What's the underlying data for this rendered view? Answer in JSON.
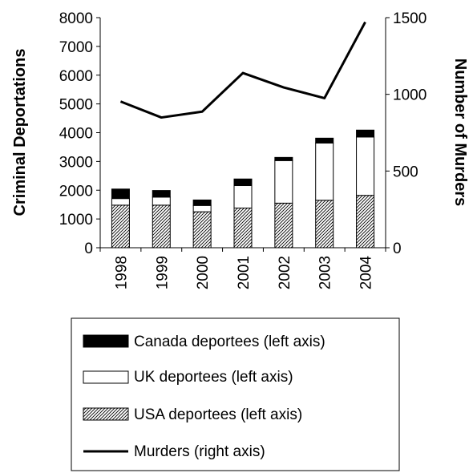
{
  "chart_data": {
    "type": "bar",
    "stacked": true,
    "categories": [
      "1998",
      "1999",
      "2000",
      "2001",
      "2002",
      "2003",
      "2004"
    ],
    "series": [
      {
        "name": "USA deportees (left axis)",
        "axis": "left",
        "kind": "bar",
        "pattern": "hatch",
        "values": [
          1480,
          1480,
          1250,
          1380,
          1550,
          1650,
          1820
        ]
      },
      {
        "name": "UK deportees (left axis)",
        "axis": "left",
        "kind": "bar",
        "pattern": "white",
        "values": [
          230,
          280,
          220,
          780,
          1480,
          1990,
          2030
        ]
      },
      {
        "name": "Canada deportees (left axis)",
        "axis": "left",
        "kind": "bar",
        "pattern": "black",
        "values": [
          330,
          230,
          190,
          230,
          110,
          170,
          240
        ]
      },
      {
        "name": "Murders (right axis)",
        "axis": "right",
        "kind": "line",
        "values": [
          953,
          849,
          887,
          1139,
          1045,
          975,
          1471
        ]
      }
    ],
    "legend_order": [
      "Canada deportees (left axis)",
      "UK deportees (left axis)",
      "USA deportees (left axis)",
      "Murders (right axis)"
    ],
    "ylabel": "Criminal Deportations",
    "ylabel_right": "Number of Murders",
    "xlabel": "",
    "ylim": [
      0,
      8000
    ],
    "ylim_right": [
      0,
      1500
    ],
    "yticks": [
      0,
      1000,
      2000,
      3000,
      4000,
      5000,
      6000,
      7000,
      8000
    ],
    "yticks_right": [
      0,
      500,
      1000,
      1500
    ],
    "grid": false,
    "legend_position": "bottom",
    "colors": {
      "bar_edge": "#000000",
      "line": "#000000",
      "canada": "#000000",
      "uk": "#ffffff"
    }
  }
}
